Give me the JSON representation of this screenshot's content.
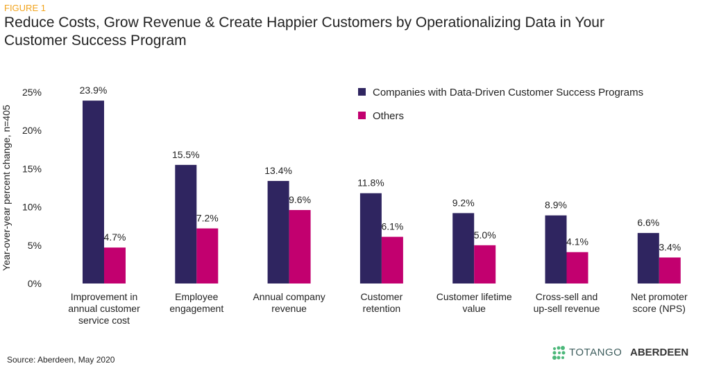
{
  "figure_label": "FIGURE 1",
  "source": "Source: Aberdeen,  May 2020",
  "logos": {
    "totango": "TOTANGO",
    "aberdeen": "ABERDEEN"
  },
  "colors": {
    "series1": "#2f2560",
    "series2": "#c2006f",
    "figure_label": "#f2a31b"
  },
  "chart_data": {
    "type": "bar",
    "title": "Reduce Costs, Grow Revenue & Create Happier Customers by Operationalizing Data in Your Customer Success Program",
    "ylabel": "Year-over-year percent change, n=405",
    "ylim": [
      0,
      25
    ],
    "yticks": [
      "0%",
      "5%",
      "10%",
      "15%",
      "20%",
      "25%"
    ],
    "legend_position": "top-right",
    "grid": false,
    "categories": [
      [
        "Improvement in",
        "annual customer",
        "service cost"
      ],
      [
        "Employee",
        "engagement"
      ],
      [
        "Annual company",
        "revenue"
      ],
      [
        "Customer",
        "retention"
      ],
      [
        "Customer lifetime",
        "value"
      ],
      [
        "Cross-sell and",
        "up-sell revenue"
      ],
      [
        "Net promoter",
        "score (NPS)"
      ]
    ],
    "series": [
      {
        "name": "Companies with Data-Driven Customer Success Programs",
        "values": [
          23.9,
          15.5,
          13.4,
          11.8,
          9.2,
          8.9,
          6.6
        ],
        "labels": [
          "23.9%",
          "15.5%",
          "13.4%",
          "11.8%",
          "9.2%",
          "8.9%",
          "6.6%"
        ]
      },
      {
        "name": "Others",
        "values": [
          4.7,
          7.2,
          9.6,
          6.1,
          5.0,
          4.1,
          3.4
        ],
        "labels": [
          "4.7%",
          "7.2%",
          "9.6%",
          "6.1%",
          "5.0%",
          "4.1%",
          "3.4%"
        ]
      }
    ]
  }
}
